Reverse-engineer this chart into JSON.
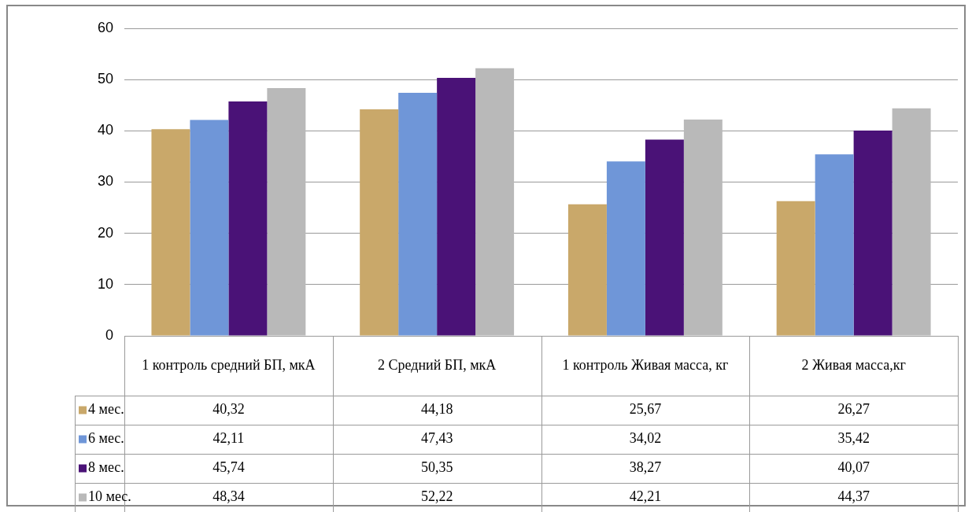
{
  "chart_data": {
    "type": "bar",
    "categories": [
      "1 контроль средний БП, мкА",
      "2 Средний БП, мкА",
      "1 контроль Живая масса, кг",
      "2 Живая масса,кг"
    ],
    "series": [
      {
        "name": "4 мес.",
        "color": "#c9a86a",
        "values": [
          40.32,
          44.18,
          25.67,
          26.27
        ],
        "value_labels": [
          "40,32",
          "44,18",
          "25,67",
          "26,27"
        ]
      },
      {
        "name": "6 мес.",
        "color": "#6f96d8",
        "values": [
          42.11,
          47.43,
          34.02,
          35.42
        ],
        "value_labels": [
          "42,11",
          "47,43",
          "34,02",
          "35,42"
        ]
      },
      {
        "name": "8 мес.",
        "color": "#4a1277",
        "values": [
          45.74,
          50.35,
          38.27,
          40.07
        ],
        "value_labels": [
          "45,74",
          "50,35",
          "38,27",
          "40,07"
        ]
      },
      {
        "name": "10 мес.",
        "color": "#b9b9b9",
        "values": [
          48.34,
          52.22,
          42.21,
          44.37
        ],
        "value_labels": [
          "48,34",
          "52,22",
          "42,21",
          "44,37"
        ]
      }
    ],
    "ylim": [
      0,
      60
    ],
    "yticks": [
      0,
      10,
      20,
      30,
      40,
      50,
      60
    ],
    "grid": "y",
    "legend": "bottom"
  }
}
